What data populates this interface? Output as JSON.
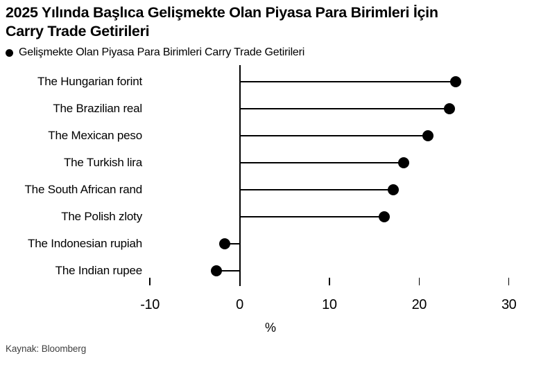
{
  "header": {
    "title_lines": [
      "2025 Yılında Başlıca Gelişmekte Olan Piyasa Para Birimleri İçin",
      "Carry Trade Getirileri"
    ]
  },
  "legend": {
    "marker": "black-dot",
    "label": "Gelişmekte Olan Piyasa Para Birimleri Carry Trade Getirileri"
  },
  "chart_data": {
    "type": "bar",
    "subtype": "horizontal-lollipop",
    "title": "2025 Yılında Başlıca Gelişmekte Olan Piyasa Para Birimleri İçin Carry Trade Getirileri",
    "series_name": "Gelişmekte Olan Piyasa Para Birimleri Carry Trade Getirileri",
    "categories": [
      "The Hungarian forint",
      "The Brazilian real",
      "The Mexican peso",
      "The Turkish lira",
      "The South African rand",
      "The Polish zloty",
      "The Indonesian rupiah",
      "The Indian rupee"
    ],
    "values": [
      24.1,
      23.4,
      21.0,
      18.3,
      17.1,
      16.1,
      -1.7,
      -2.6
    ],
    "xlabel": "%",
    "xlim": [
      -10,
      30
    ],
    "xticks": [
      -10,
      0,
      10,
      20,
      30
    ],
    "grid": false,
    "legend_position": "top-left",
    "marker_color": "#000000",
    "axis_color": "#000000",
    "background_color": "#ffffff"
  },
  "footer": {
    "source": "Kaynak: Bloomberg"
  }
}
